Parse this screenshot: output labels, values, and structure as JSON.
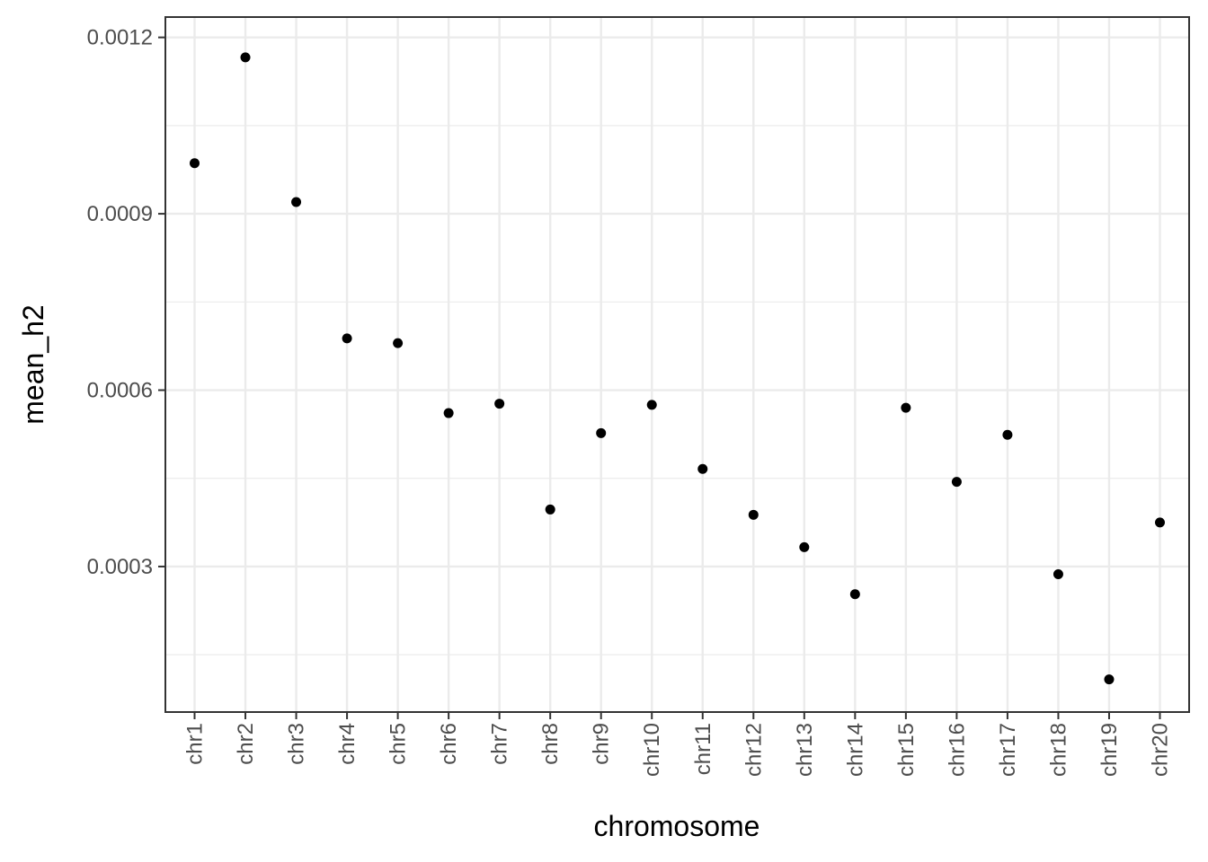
{
  "chart_data": {
    "type": "scatter",
    "title": "",
    "xlabel": "chromosome",
    "ylabel": "mean_h2",
    "categories": [
      "chr1",
      "chr2",
      "chr3",
      "chr4",
      "chr5",
      "chr6",
      "chr7",
      "chr8",
      "chr9",
      "chr10",
      "chr11",
      "chr12",
      "chr13",
      "chr14",
      "chr15",
      "chr16",
      "chr17",
      "chr18",
      "chr19",
      "chr20"
    ],
    "values": [
      0.000986,
      0.001166,
      0.00092,
      0.000688,
      0.00068,
      0.000561,
      0.000577,
      0.000397,
      0.000527,
      0.000575,
      0.000466,
      0.000388,
      0.000333,
      0.000253,
      0.00057,
      0.000444,
      0.000524,
      0.000287,
      0.000108,
      0.000375
    ],
    "yticks": [
      0.0003,
      0.0006,
      0.0009,
      0.0012
    ],
    "ytick_labels": [
      "0.0003",
      "0.0006",
      "0.0009",
      "0.0012"
    ],
    "ylim": [
      5.25e-05,
      0.0012346
    ],
    "grid": true,
    "point_color": "#000000"
  }
}
